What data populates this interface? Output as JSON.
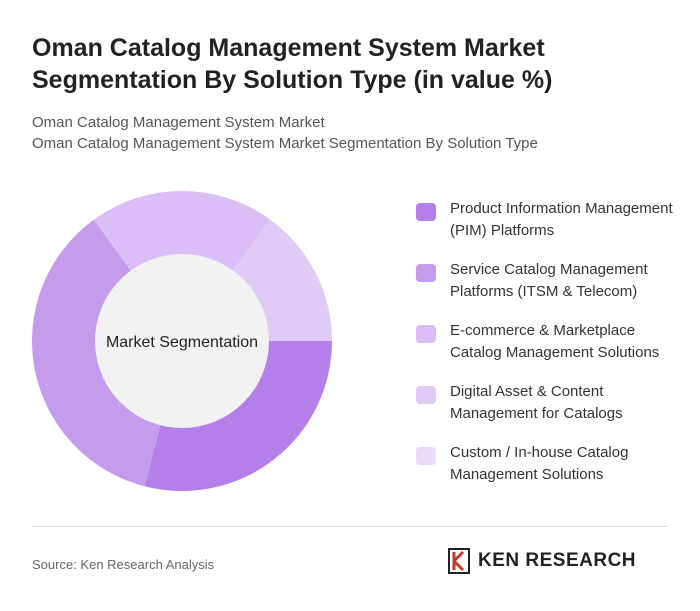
{
  "title": "Oman Catalog Management System Market Segmentation By Solution Type (in value %)",
  "subtitle1": "Oman Catalog Management System Market",
  "subtitle2": "Oman Catalog Management System Market Segmentation By Solution Type",
  "source": "Source: Ken Research Analysis",
  "logo_text": "KEN RESEARCH",
  "chart_data": {
    "type": "pie",
    "donut": true,
    "center_label": "Market Segmentation",
    "legend_position": "right",
    "categories": [
      "Product Information Management (PIM) Platforms",
      "Service Catalog Management Platforms (ITSM & Telecom)",
      "E-commerce & Marketplace Catalog Management Solutions",
      "Digital Asset & Content Management for Catalogs",
      "Custom / In-house Catalog Management Solutions"
    ],
    "values": [
      29,
      36,
      20,
      15,
      0
    ],
    "colors": [
      "#b57fe9",
      "#c59bec",
      "#d9bff5",
      "#e0cbf6",
      "#e9dcf8"
    ]
  }
}
